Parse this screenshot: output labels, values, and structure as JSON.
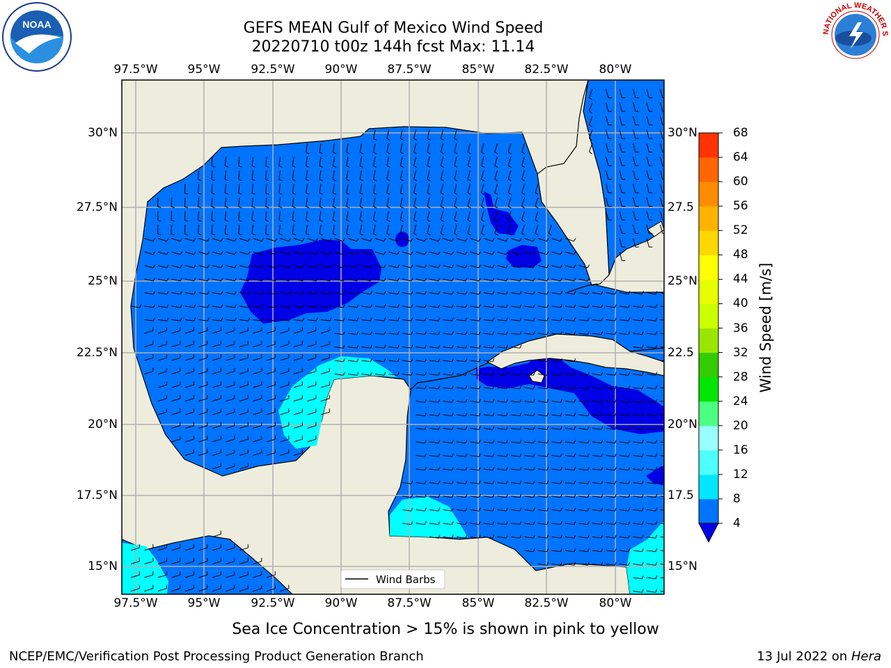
{
  "title": {
    "line1": "GEFS MEAN Gulf of Mexico Wind Speed",
    "line2": "20220710 t00z 144h fcst   Max: 11.14"
  },
  "axes": {
    "lon_ticks": [
      "97.5°W",
      "95°W",
      "92.5°W",
      "90°W",
      "87.5°W",
      "85°W",
      "82.5°W",
      "80°W"
    ],
    "lat_ticks_left": [
      "30°N",
      "27.5°N",
      "25°N",
      "22.5°N",
      "20°N",
      "17.5°N",
      "15°N"
    ],
    "lat_ticks_right": [
      "30°N",
      "27.5",
      "25°N",
      "22.5",
      "20°N",
      "17.5",
      "15°N"
    ],
    "extent": {
      "lon": [
        -98,
        -78.2
      ],
      "lat": [
        14,
        31.6
      ]
    }
  },
  "legend": {
    "wind_barbs": "Wind Barbs"
  },
  "colorbar": {
    "label": "Wind Speed [m/s]",
    "ticks": [
      "4",
      "8",
      "12",
      "16",
      "20",
      "24",
      "28",
      "32",
      "36",
      "40",
      "44",
      "48",
      "52",
      "56",
      "60",
      "64",
      "68"
    ],
    "colors": [
      "#0073ff",
      "#00e6ff",
      "#4dffff",
      "#99ffff",
      "#4dff80",
      "#00e600",
      "#33cc00",
      "#99e600",
      "#ccff00",
      "#e6ff00",
      "#ffff00",
      "#ffd700",
      "#ffb300",
      "#ff8c00",
      "#ff6600",
      "#ff3300",
      "#ff0000"
    ],
    "under_color": "#0000e6"
  },
  "colors": {
    "land": "#eeeddd",
    "water_4_8": "#0073ff",
    "water_under_4": "#0000e6",
    "water_8_12": "#00ffff"
  },
  "note": "Sea Ice Concentration > 15% is shown in pink to yellow",
  "footer": {
    "left": "NCEP/EMC/Verification Post Processing Product Generation Branch",
    "right_prefix": "13 Jul 2022 on ",
    "right_machine": "Hera"
  },
  "logos": {
    "noaa": "NOAA",
    "nws": "NATIONAL WEATHER SERVICE"
  }
}
